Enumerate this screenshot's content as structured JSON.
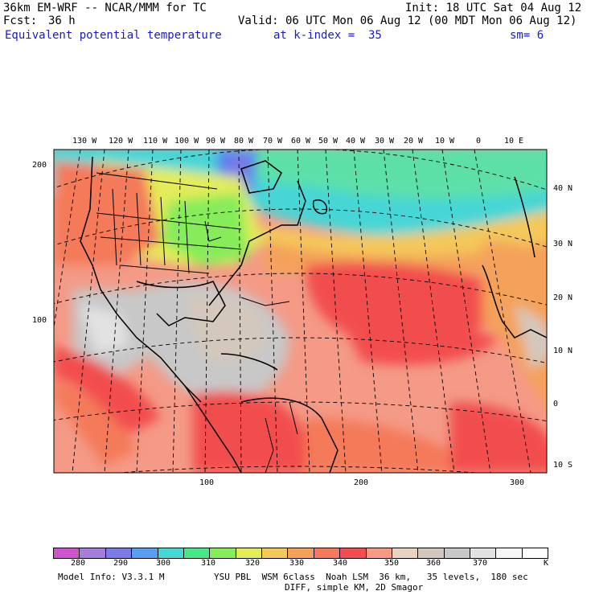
{
  "header": {
    "model_line": "36km EM-WRF -- NCAR/MMM for TC",
    "init": "Init: 18 UTC Sat 04 Aug 12",
    "fcst_label": "Fcst:",
    "fcst_value": "36 h",
    "valid": "Valid: 06 UTC Mon 06 Aug 12 (00 MDT Mon 06 Aug 12)",
    "field": "Equivalent potential temperature",
    "k_index": "at k-index =  35",
    "sm": "sm= 6"
  },
  "lon_labels": [
    "130 W",
    "120 W",
    "110 W",
    "100 W",
    "90 W",
    "80 W",
    "70 W",
    "60 W",
    "50 W",
    "40 W",
    "30 W",
    "20 W",
    "10 W",
    "0",
    "10 E"
  ],
  "lat_labels": [
    "40 N",
    "30 N",
    "20 N",
    "10 N",
    "0",
    "10 S"
  ],
  "grid_y_labels": [
    "200",
    "100"
  ],
  "grid_x_labels": [
    "100",
    "200",
    "300"
  ],
  "colorbar": {
    "colors": [
      "#cc55cc",
      "#a47ed8",
      "#7c7ce4",
      "#5a9ef0",
      "#46d6d6",
      "#46e88a",
      "#86ec5a",
      "#e4ec5a",
      "#f4c85a",
      "#f4a25a",
      "#f47a5a",
      "#f24e4e",
      "#f49a86",
      "#ead2c0",
      "#d4c8bc",
      "#c8c8c8",
      "#e2e2e2",
      "#f6f6f6",
      "#ffffff"
    ],
    "labels": [
      "280",
      "290",
      "300",
      "310",
      "320",
      "330",
      "340",
      "350",
      "360",
      "370"
    ],
    "unit": "K"
  },
  "footer": {
    "model_info": "Model Info: V3.3.1 M",
    "physics": "YSU PBL  WSM 6class  Noah LSM  36 km,   35 levels,  180 sec",
    "diff": "DIFF, simple KM, 2D Smagor"
  }
}
